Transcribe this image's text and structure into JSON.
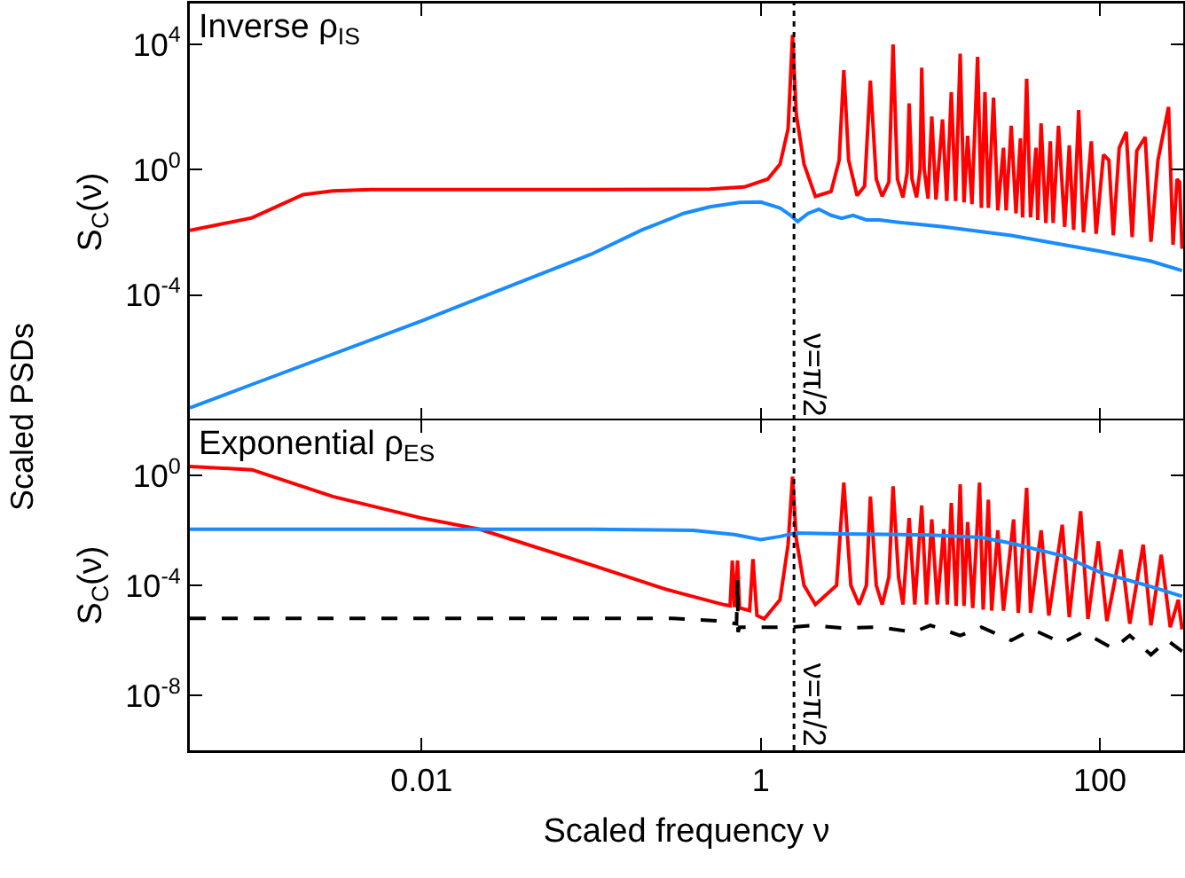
{
  "chart_data": [
    {
      "type": "line",
      "title": "Inverse ρ$_{IS}$",
      "ylabel": "S$_{C}$(ν)",
      "annotations": [
        "Scaled PSDs"
      ],
      "log": "xy",
      "tick_labels": "y",
      "xlim": [
        0.00043,
        310
      ],
      "xticks": [
        0.01,
        1,
        100
      ],
      "ylim": [
        1e-08,
        200000
      ],
      "yticks": [
        {
          "value": 10000,
          "label": "10$^{4}$"
        },
        {
          "value": 1,
          "label": "10$^{0}$"
        },
        {
          "value": 0.0001,
          "label": "10$^{-4}$"
        }
      ],
      "ref_lines": [
        {
          "axis": "x",
          "value": 1.5708,
          "label": "ν=π/2",
          "line_style": "dotted",
          "color": "#000000"
        }
      ],
      "series": [
        {
          "color": "#ff0000",
          "x": [
            0.00043,
            0.001,
            0.002,
            0.003,
            0.005,
            0.01,
            0.1,
            0.5,
            0.8,
            1.1,
            1.3,
            1.45,
            1.54,
            1.62,
            1.8,
            2.1,
            2.6,
            2.9,
            3.09,
            3.3,
            3.7,
            4.1,
            4.43,
            4.8,
            5.2,
            5.7,
            6.03,
            6.4,
            6.9,
            7.3,
            7.5,
            7.8,
            8.3,
            8.7,
            8.9,
            9.2,
            9.7,
            10.2,
            10.8,
            11.8,
            12.5,
            13.3,
            14.1,
            15,
            15.8,
            16.6,
            17.6,
            19,
            20,
            21,
            22,
            23.6,
            25,
            27,
            28,
            30,
            32,
            34,
            35,
            37,
            39,
            42,
            43,
            45,
            48,
            51,
            53,
            57,
            62,
            66,
            70,
            75,
            80,
            89,
            95,
            105,
            113,
            120,
            130,
            143,
            155,
            165,
            185,
            200,
            220,
            254,
            270,
            285,
            295,
            305
          ],
          "values": [
            0.0115,
            0.029,
            0.16,
            0.21,
            0.23,
            0.23,
            0.23,
            0.24,
            0.28,
            0.5,
            1.5,
            20,
            20000,
            60,
            1.5,
            0.14,
            0.2,
            2,
            1500,
            2,
            0.15,
            0.3,
            700,
            0.5,
            0.14,
            0.4,
            10000,
            0.5,
            0.13,
            0.8,
            130,
            0.5,
            0.13,
            1,
            1800,
            1,
            0.12,
            50,
            0.11,
            40,
            0.1,
            300,
            0.1,
            5000,
            0.09,
            12,
            0.08,
            4000,
            0.06,
            300,
            0.06,
            200,
            0.05,
            5,
            0.05,
            25,
            0.04,
            10,
            0.03,
            800,
            0.03,
            5,
            0.025,
            30,
            0.02,
            8,
            0.02,
            25,
            0.015,
            6,
            0.012,
            80,
            0.01,
            8,
            0.009,
            3,
            2,
            0.008,
            5,
            16,
            0.007,
            4,
            11,
            0.005,
            2,
            100,
            0.004,
            0.5,
            0.4,
            0.003
          ]
        },
        {
          "color": "#1a8cff",
          "x": [
            0.00043,
            0.001,
            0.01,
            0.1,
            0.2,
            0.35,
            0.5,
            0.75,
            1,
            1.3,
            1.5,
            1.65,
            1.9,
            2.2,
            2.6,
            3,
            3.5,
            4.2,
            5,
            7,
            12,
            30,
            100,
            200,
            305
          ],
          "values": [
            2.5e-08,
            1.4e-07,
            1.5e-05,
            0.002,
            0.012,
            0.04,
            0.065,
            0.09,
            0.093,
            0.06,
            0.035,
            0.022,
            0.04,
            0.055,
            0.035,
            0.028,
            0.035,
            0.025,
            0.025,
            0.02,
            0.015,
            0.008,
            0.0025,
            0.0012,
            0.0006
          ]
        }
      ]
    },
    {
      "type": "line",
      "title": "Exponential ρ$_{ES}$",
      "ylabel": "S$_{C}$(ν)",
      "xlabel": "Scaled frequency ν",
      "log": "xy",
      "xlim": [
        0.00043,
        310
      ],
      "xticks": [
        0.01,
        1,
        100
      ],
      "ylim": [
        1e-10,
        100
      ],
      "yticks": [
        {
          "value": 1,
          "label": "10$^{0}$"
        },
        {
          "value": 0.0001,
          "label": "10$^{-4}$"
        },
        {
          "value": 1e-08,
          "label": "10$^{-8}$"
        }
      ],
      "ref_lines": [
        {
          "axis": "x",
          "value": 1.5708,
          "label": "ν=π/2",
          "line_style": "dotted",
          "color": "#000000"
        }
      ],
      "series": [
        {
          "color": "#ff0000",
          "x": [
            0.00043,
            0.001,
            0.003,
            0.01,
            0.022,
            0.1,
            0.28,
            0.6,
            0.66,
            0.68,
            0.7,
            0.73,
            0.75,
            0.86,
            0.9,
            0.95,
            1.05,
            1.3,
            1.45,
            1.54,
            1.62,
            1.8,
            2.1,
            2.8,
            3.09,
            3.4,
            3.8,
            4.2,
            4.43,
            4.8,
            5.2,
            5.7,
            6.03,
            6.5,
            6.9,
            7.5,
            8.1,
            8.9,
            9.5,
            10.2,
            11,
            12,
            12.6,
            13.3,
            14.2,
            15,
            15.8,
            16.6,
            17.8,
            19.5,
            20.5,
            22,
            23,
            25,
            27,
            31,
            33,
            37,
            39,
            45,
            50,
            60,
            66,
            77,
            85,
            98,
            110,
            133,
            150,
            180,
            200,
            230,
            260,
            290,
            305
          ],
          "values": [
            2.1,
            1.6,
            0.17,
            0.028,
            0.011,
            0.00056,
            7e-05,
            2e-05,
            1.8e-05,
            0.0008,
            1.6e-05,
            0.0008,
            1.5e-05,
            1.2e-05,
            0.0009,
            8e-06,
            6e-06,
            3e-05,
            0.003,
            0.9,
            0.005,
            0.0001,
            2e-05,
            0.0001,
            0.55,
            0.0001,
            2e-05,
            0.0001,
            0.17,
            0.0001,
            2e-05,
            0.0002,
            0.4,
            0.0002,
            2e-05,
            0.028,
            2e-05,
            0.08,
            2e-05,
            0.025,
            2e-05,
            0.011,
            2e-05,
            0.1,
            1.8e-05,
            0.47,
            1.8e-05,
            0.02,
            1.5e-05,
            0.55,
            1.3e-05,
            0.13,
            1.2e-05,
            0.01,
            1.2e-05,
            0.025,
            1e-05,
            0.35,
            1e-05,
            0.01,
            8e-06,
            0.016,
            7e-06,
            0.05,
            6e-06,
            0.004,
            5e-06,
            0.002,
            4e-06,
            0.003,
            3.5e-06,
            0.0013,
            3e-06,
            3e-05,
            2.5e-06
          ]
        },
        {
          "color": "#1a8cff",
          "x": [
            0.00043,
            0.1,
            0.4,
            0.7,
            1,
            1.3,
            1.6,
            3,
            10,
            20,
            30,
            60,
            100,
            200,
            305
          ],
          "values": [
            0.011,
            0.011,
            0.01,
            0.007,
            0.0046,
            0.006,
            0.008,
            0.0075,
            0.0068,
            0.0055,
            0.0034,
            0.0012,
            0.0003,
            9e-05,
            4e-05
          ]
        },
        {
          "color": "#000000",
          "line_style": "dashed",
          "x": [
            0.00043,
            0.3,
            0.6,
            0.72,
            0.73,
            0.735,
            0.75,
            1,
            1.54,
            2,
            3,
            5,
            8,
            10,
            15,
            20,
            30,
            40,
            60,
            80,
            120,
            150,
            200,
            250,
            305
          ],
          "values": [
            6.3e-06,
            6.3e-06,
            5e-06,
            4e-06,
            0.00016,
            2e-06,
            3e-06,
            3e-06,
            3e-06,
            3.5e-06,
            2.8e-06,
            3e-06,
            2e-06,
            3.5e-06,
            1.5e-06,
            3e-06,
            1e-06,
            2.5e-06,
            8e-07,
            2e-06,
            5e-07,
            1.5e-06,
            3e-07,
            1e-06,
            4e-07
          ]
        }
      ]
    }
  ]
}
